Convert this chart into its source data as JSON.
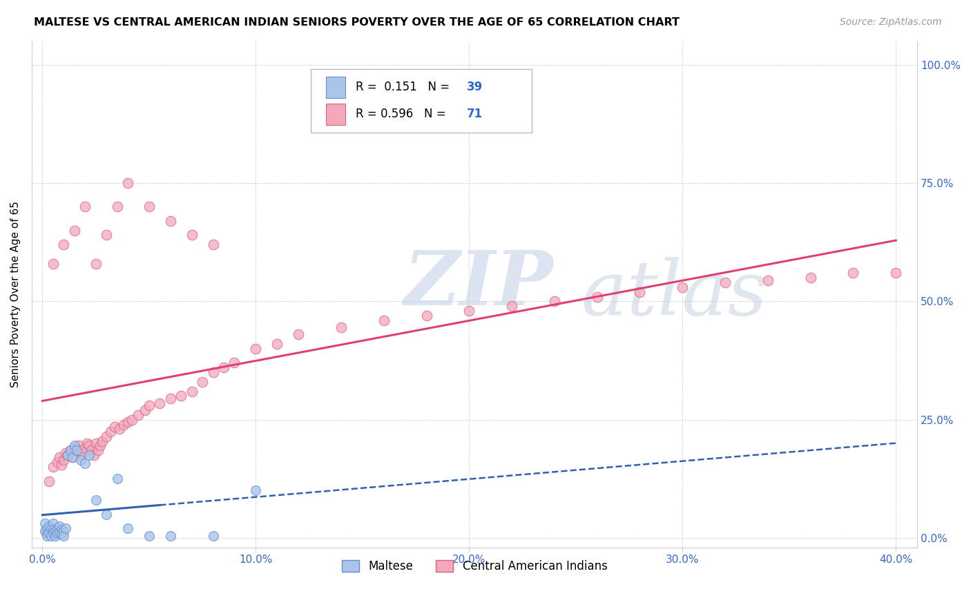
{
  "title": "MALTESE VS CENTRAL AMERICAN INDIAN SENIORS POVERTY OVER THE AGE OF 65 CORRELATION CHART",
  "source": "Source: ZipAtlas.com",
  "ylabel": "Seniors Poverty Over the Age of 65",
  "xlabel_ticks": [
    "0.0%",
    "10.0%",
    "20.0%",
    "30.0%",
    "40.0%"
  ],
  "xlabel_vals": [
    0.0,
    0.1,
    0.2,
    0.3,
    0.4
  ],
  "ylabel_ticks": [
    "0.0%",
    "25.0%",
    "50.0%",
    "75.0%",
    "100.0%"
  ],
  "ylabel_vals": [
    0.0,
    0.25,
    0.5,
    0.75,
    1.0
  ],
  "xlim": [
    -0.005,
    0.41
  ],
  "ylim": [
    -0.02,
    1.05
  ],
  "maltese_R": 0.151,
  "maltese_N": 39,
  "central_R": 0.596,
  "central_N": 71,
  "maltese_color": "#aac4ea",
  "maltese_edge": "#6090cc",
  "central_color": "#f4a8bc",
  "central_edge": "#d86080",
  "maltese_line_color": "#3060b0",
  "central_line_color": "#e04070",
  "watermark_zip": "ZIP",
  "watermark_atlas": "atlas",
  "watermark_color_zip": "#c0cfe8",
  "watermark_color_atlas": "#b8c8d8",
  "legend_label_1": "Maltese",
  "legend_label_2": "Central American Indians",
  "maltese_x": [
    0.001,
    0.001,
    0.002,
    0.002,
    0.002,
    0.003,
    0.003,
    0.004,
    0.004,
    0.005,
    0.005,
    0.005,
    0.006,
    0.006,
    0.007,
    0.007,
    0.008,
    0.008,
    0.009,
    0.009,
    0.01,
    0.01,
    0.011,
    0.012,
    0.013,
    0.014,
    0.015,
    0.016,
    0.018,
    0.02,
    0.022,
    0.025,
    0.03,
    0.035,
    0.04,
    0.05,
    0.06,
    0.08,
    0.1
  ],
  "maltese_y": [
    0.03,
    0.015,
    0.02,
    0.01,
    0.005,
    0.025,
    0.01,
    0.02,
    0.005,
    0.03,
    0.018,
    0.01,
    0.015,
    0.005,
    0.02,
    0.01,
    0.025,
    0.012,
    0.018,
    0.008,
    0.015,
    0.005,
    0.02,
    0.175,
    0.185,
    0.17,
    0.195,
    0.185,
    0.165,
    0.158,
    0.175,
    0.08,
    0.05,
    0.125,
    0.02,
    0.005,
    0.005,
    0.005,
    0.1
  ],
  "central_x": [
    0.003,
    0.005,
    0.007,
    0.008,
    0.009,
    0.01,
    0.011,
    0.012,
    0.013,
    0.014,
    0.015,
    0.016,
    0.017,
    0.018,
    0.019,
    0.02,
    0.021,
    0.022,
    0.023,
    0.024,
    0.025,
    0.026,
    0.027,
    0.028,
    0.03,
    0.032,
    0.034,
    0.036,
    0.038,
    0.04,
    0.042,
    0.045,
    0.048,
    0.05,
    0.055,
    0.06,
    0.065,
    0.07,
    0.075,
    0.08,
    0.085,
    0.09,
    0.1,
    0.11,
    0.12,
    0.14,
    0.16,
    0.18,
    0.2,
    0.22,
    0.24,
    0.26,
    0.28,
    0.3,
    0.32,
    0.34,
    0.36,
    0.38,
    0.4,
    0.005,
    0.01,
    0.015,
    0.02,
    0.025,
    0.03,
    0.035,
    0.04,
    0.05,
    0.06,
    0.07,
    0.08
  ],
  "central_y": [
    0.12,
    0.15,
    0.16,
    0.17,
    0.155,
    0.165,
    0.18,
    0.175,
    0.185,
    0.17,
    0.19,
    0.185,
    0.195,
    0.175,
    0.18,
    0.19,
    0.2,
    0.195,
    0.185,
    0.175,
    0.2,
    0.185,
    0.195,
    0.205,
    0.215,
    0.225,
    0.235,
    0.23,
    0.24,
    0.245,
    0.25,
    0.26,
    0.27,
    0.28,
    0.285,
    0.295,
    0.3,
    0.31,
    0.33,
    0.35,
    0.36,
    0.37,
    0.4,
    0.41,
    0.43,
    0.445,
    0.46,
    0.47,
    0.48,
    0.49,
    0.5,
    0.51,
    0.52,
    0.53,
    0.54,
    0.545,
    0.55,
    0.56,
    0.56,
    0.58,
    0.62,
    0.65,
    0.7,
    0.58,
    0.64,
    0.7,
    0.75,
    0.7,
    0.67,
    0.64,
    0.62
  ]
}
